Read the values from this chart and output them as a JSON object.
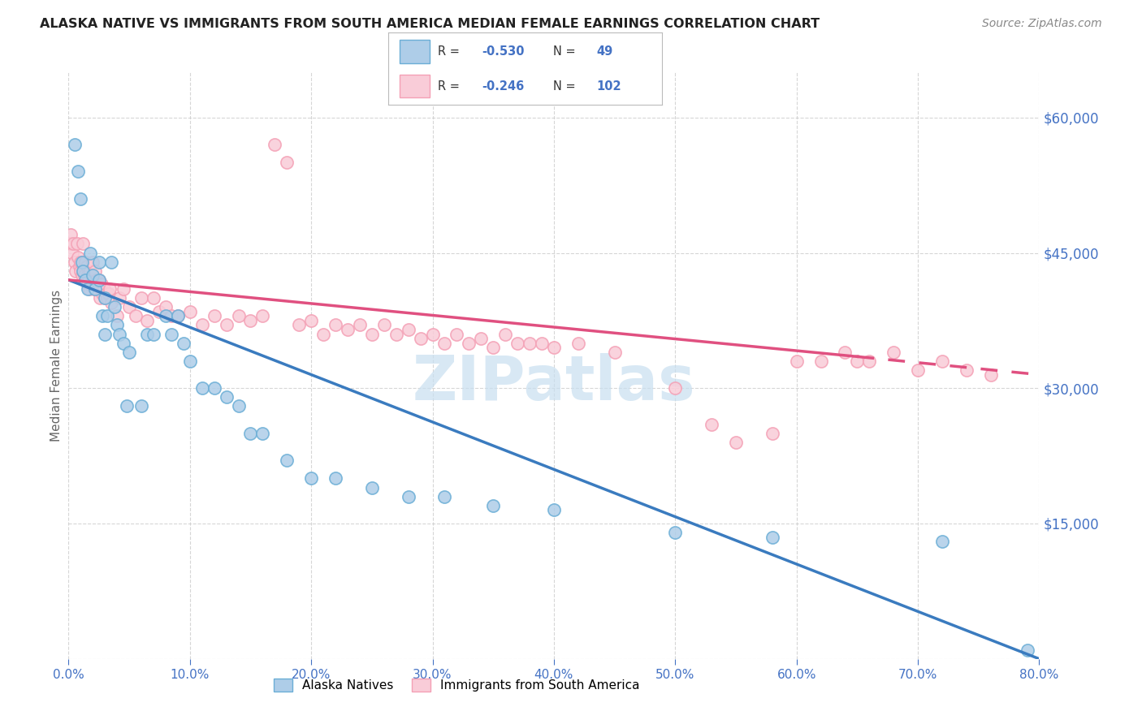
{
  "title": "ALASKA NATIVE VS IMMIGRANTS FROM SOUTH AMERICA MEDIAN FEMALE EARNINGS CORRELATION CHART",
  "source": "Source: ZipAtlas.com",
  "ylabel": "Median Female Earnings",
  "ylim": [
    0,
    65000
  ],
  "xlim": [
    0.0,
    0.8
  ],
  "blue_color": "#6baed6",
  "blue_fill_color": "#aecde8",
  "pink_color": "#f4a0b5",
  "pink_fill_color": "#f9ccd8",
  "line_blue": "#3a7bbf",
  "line_pink": "#e05080",
  "watermark_color": "#c8dff0",
  "axis_label_color": "#4472c4",
  "background_color": "#ffffff",
  "grid_color": "#cccccc",
  "blue_x": [
    0.005,
    0.008,
    0.01,
    0.011,
    0.012,
    0.014,
    0.016,
    0.018,
    0.02,
    0.022,
    0.025,
    0.025,
    0.028,
    0.03,
    0.03,
    0.032,
    0.035,
    0.038,
    0.04,
    0.042,
    0.045,
    0.048,
    0.05,
    0.06,
    0.065,
    0.07,
    0.08,
    0.085,
    0.09,
    0.095,
    0.1,
    0.11,
    0.12,
    0.13,
    0.14,
    0.15,
    0.16,
    0.18,
    0.2,
    0.22,
    0.25,
    0.28,
    0.31,
    0.35,
    0.4,
    0.5,
    0.58,
    0.72,
    0.79
  ],
  "blue_y": [
    57000,
    54000,
    51000,
    44000,
    43000,
    42000,
    41000,
    45000,
    42500,
    41000,
    42000,
    44000,
    38000,
    36000,
    40000,
    38000,
    44000,
    39000,
    37000,
    36000,
    35000,
    28000,
    34000,
    28000,
    36000,
    36000,
    38000,
    36000,
    38000,
    35000,
    33000,
    30000,
    30000,
    29000,
    28000,
    25000,
    25000,
    22000,
    20000,
    20000,
    19000,
    18000,
    18000,
    17000,
    16500,
    14000,
    13500,
    13000,
    1000
  ],
  "pink_x": [
    0.001,
    0.002,
    0.003,
    0.004,
    0.005,
    0.006,
    0.007,
    0.008,
    0.009,
    0.01,
    0.01,
    0.011,
    0.012,
    0.012,
    0.013,
    0.014,
    0.014,
    0.015,
    0.015,
    0.016,
    0.016,
    0.017,
    0.018,
    0.018,
    0.019,
    0.02,
    0.02,
    0.021,
    0.022,
    0.022,
    0.023,
    0.024,
    0.025,
    0.026,
    0.027,
    0.028,
    0.029,
    0.03,
    0.031,
    0.032,
    0.033,
    0.034,
    0.035,
    0.04,
    0.042,
    0.045,
    0.05,
    0.055,
    0.06,
    0.065,
    0.07,
    0.075,
    0.08,
    0.085,
    0.09,
    0.1,
    0.11,
    0.12,
    0.13,
    0.14,
    0.15,
    0.16,
    0.17,
    0.18,
    0.19,
    0.2,
    0.21,
    0.22,
    0.23,
    0.24,
    0.25,
    0.26,
    0.27,
    0.28,
    0.29,
    0.3,
    0.31,
    0.32,
    0.33,
    0.34,
    0.35,
    0.36,
    0.37,
    0.38,
    0.39,
    0.4,
    0.42,
    0.45,
    0.5,
    0.53,
    0.55,
    0.58,
    0.6,
    0.62,
    0.64,
    0.65,
    0.66,
    0.68,
    0.7,
    0.72,
    0.74,
    0.76
  ],
  "pink_y": [
    46000,
    47000,
    45000,
    46000,
    44000,
    43000,
    46000,
    44500,
    43500,
    43000,
    44000,
    42500,
    43000,
    46000,
    42500,
    42000,
    44000,
    42000,
    43500,
    41500,
    42500,
    41000,
    43000,
    41500,
    42000,
    42000,
    44000,
    41000,
    41000,
    43000,
    42000,
    41500,
    42000,
    40000,
    41500,
    40500,
    41000,
    40000,
    40500,
    40000,
    40500,
    41000,
    39500,
    38000,
    40000,
    41000,
    39000,
    38000,
    40000,
    37500,
    40000,
    38500,
    39000,
    38000,
    38000,
    38500,
    37000,
    38000,
    37000,
    38000,
    37500,
    38000,
    57000,
    55000,
    37000,
    37500,
    36000,
    37000,
    36500,
    37000,
    36000,
    37000,
    36000,
    36500,
    35500,
    36000,
    35000,
    36000,
    35000,
    35500,
    34500,
    36000,
    35000,
    35000,
    35000,
    34500,
    35000,
    34000,
    30000,
    26000,
    24000,
    25000,
    33000,
    33000,
    34000,
    33000,
    33000,
    34000,
    32000,
    33000,
    32000,
    31500
  ]
}
